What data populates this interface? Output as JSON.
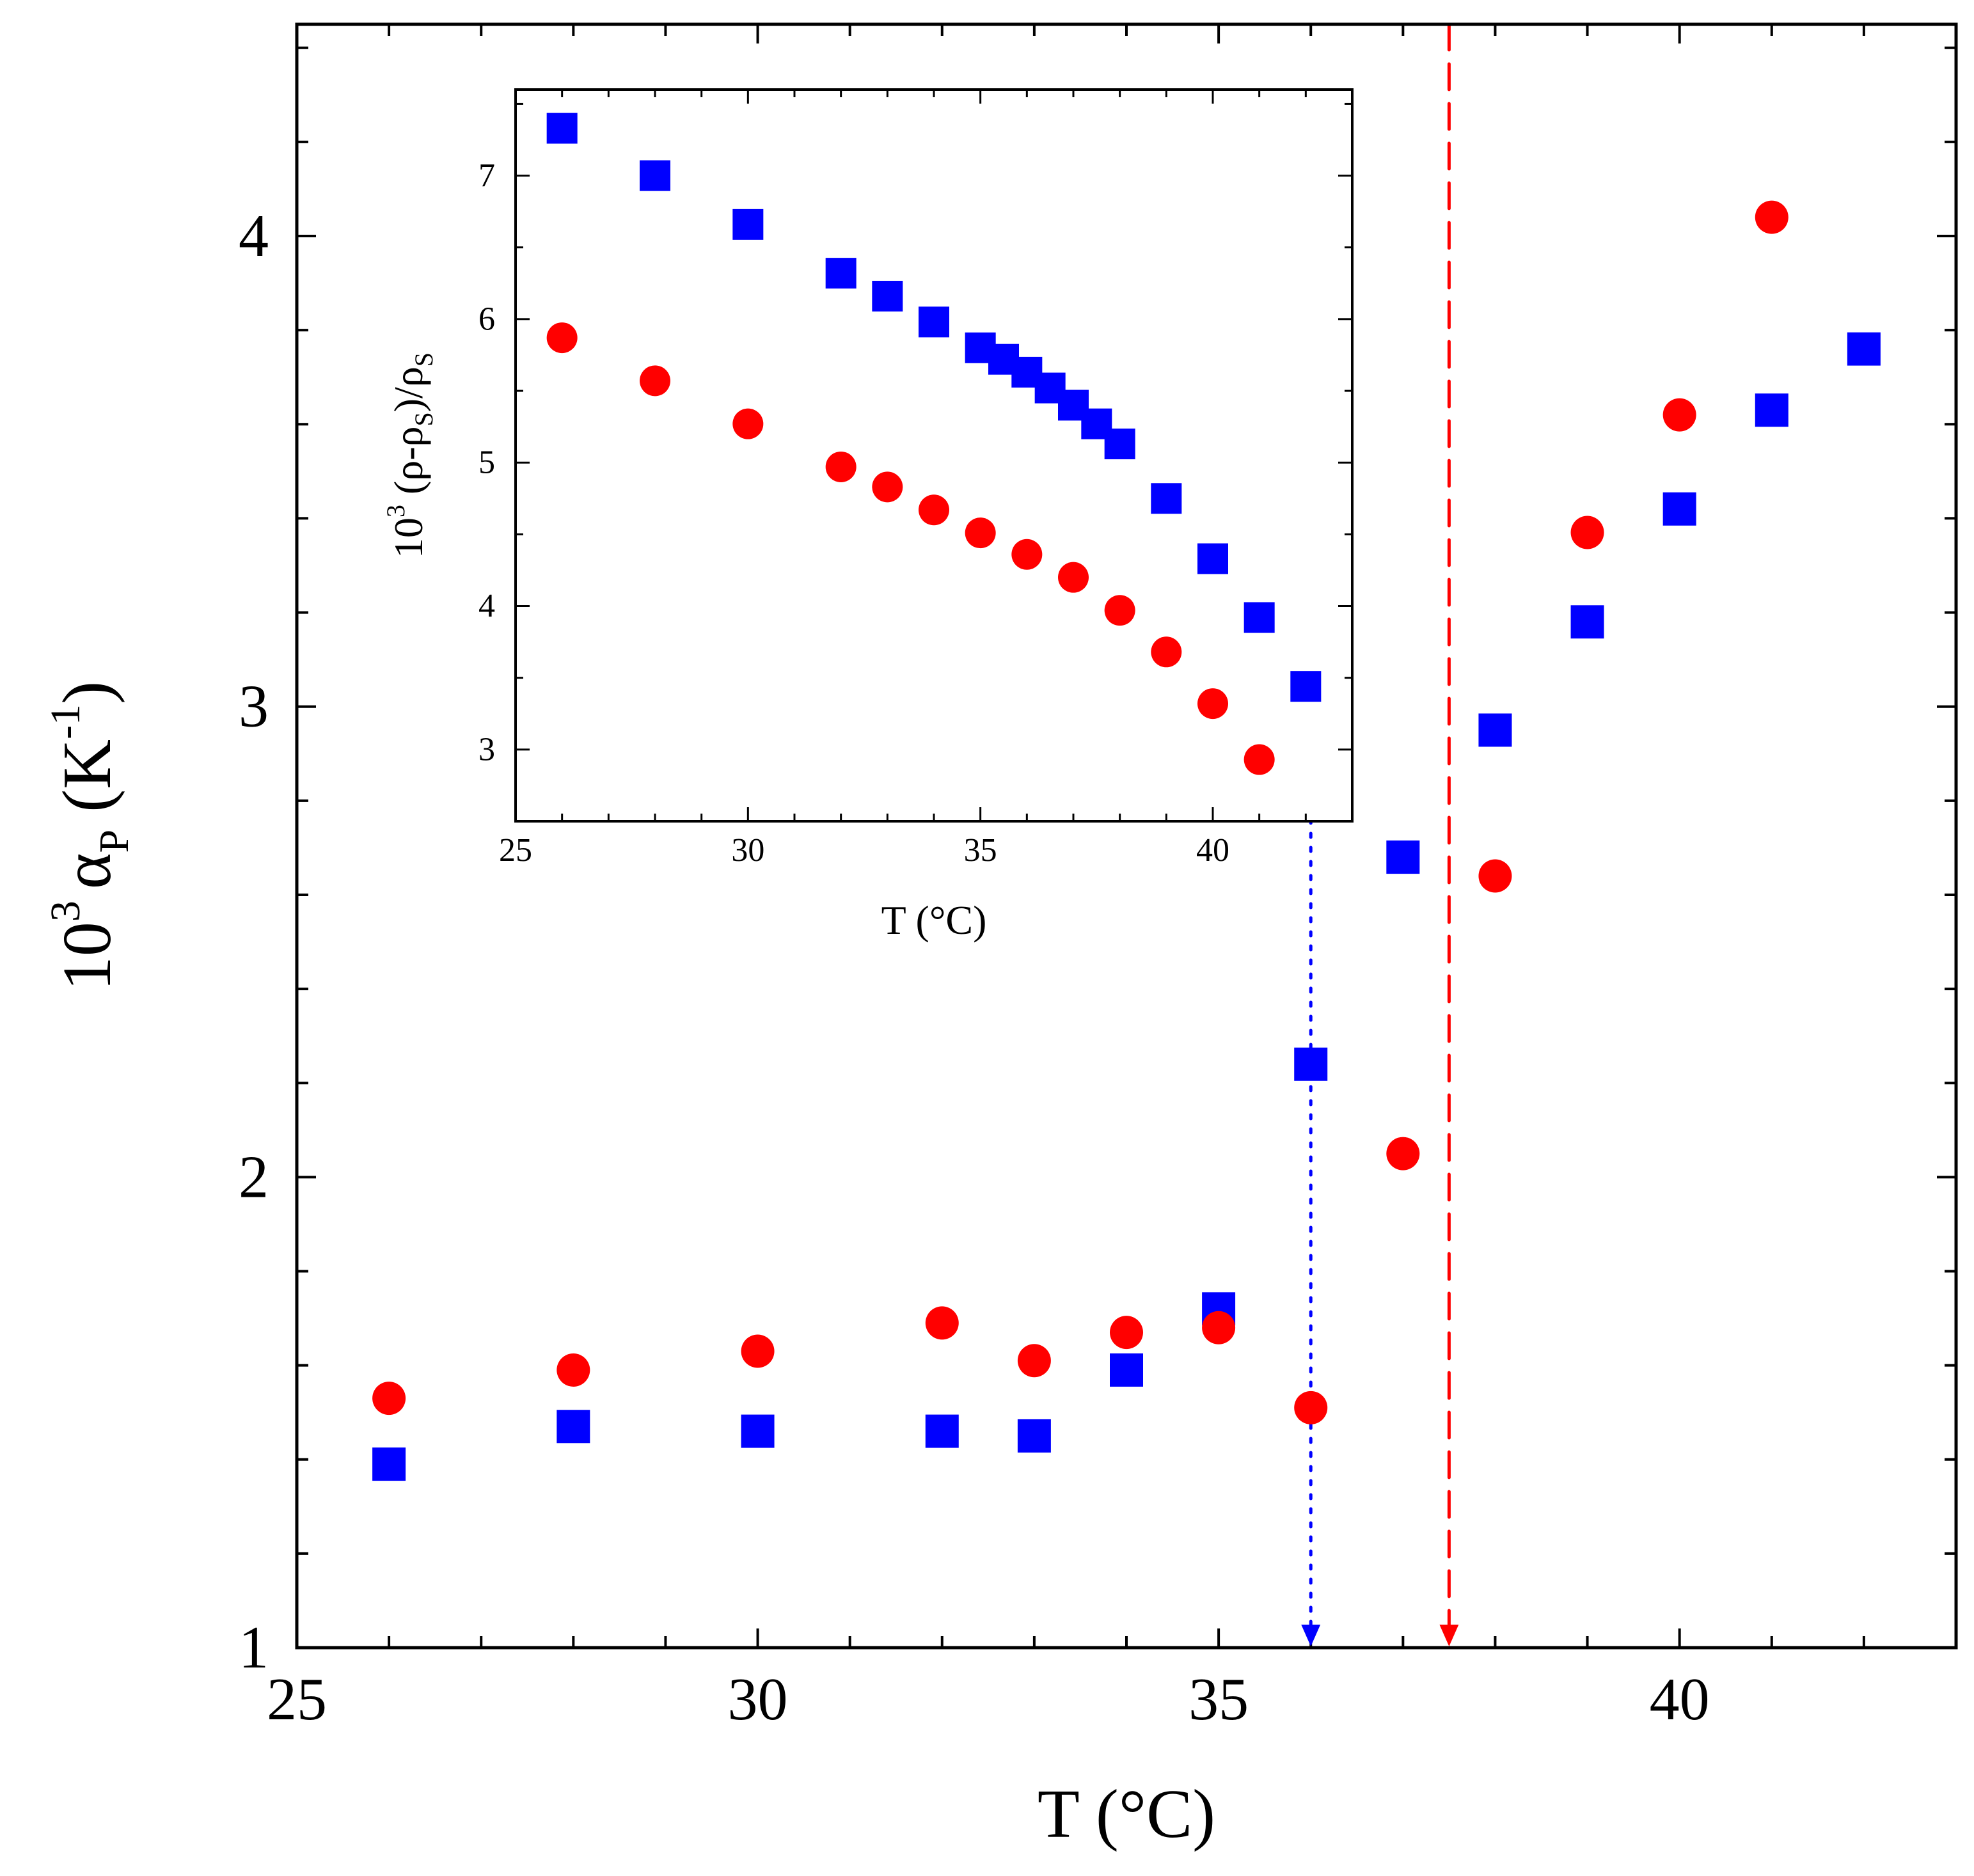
{
  "colors": {
    "series_a": "#0000ff",
    "series_b": "#ff0000",
    "axis": "#000000"
  },
  "chart_data": [
    {
      "id": "main",
      "type": "scatter",
      "xlabel": "T (°C)",
      "ylabel": {
        "base": "10",
        "exp": "3",
        "symbol": "α",
        "sub": "P",
        "unit_open": " (K",
        "unit_exp": "-1",
        "unit_close": ")"
      },
      "xlim": [
        25,
        43
      ],
      "ylim": [
        1,
        4.45
      ],
      "xticks": [
        25,
        30,
        35,
        40
      ],
      "yticks": [
        1,
        2,
        3,
        4
      ],
      "xtick_labels": [
        "25",
        "30",
        "35",
        "40"
      ],
      "ytick_labels": [
        "1",
        "2",
        "3",
        "4"
      ],
      "series": [
        {
          "name": "squares",
          "marker": "square",
          "color": "#0000ff",
          "x": [
            26,
            28,
            30,
            32,
            33,
            34,
            35,
            36,
            37,
            38,
            39,
            40,
            41,
            42
          ],
          "y": [
            1.39,
            1.47,
            1.46,
            1.46,
            1.45,
            1.59,
            1.72,
            2.24,
            2.68,
            2.95,
            3.18,
            3.42,
            3.63,
            3.76
          ]
        },
        {
          "name": "circles",
          "marker": "circle",
          "color": "#ff0000",
          "x": [
            26,
            28,
            30,
            32,
            33,
            34,
            35,
            36,
            37,
            38,
            39,
            40,
            41
          ],
          "y": [
            1.53,
            1.59,
            1.63,
            1.69,
            1.61,
            1.67,
            1.68,
            1.51,
            2.05,
            2.64,
            3.37,
            3.62,
            4.04
          ]
        }
      ],
      "annotations": [
        {
          "type": "vline-arrow",
          "style": "dotted",
          "color": "#0000ff",
          "x": 36.0,
          "y_from": 2.85,
          "y_to": 1.0
        },
        {
          "type": "vline-arrow",
          "style": "dashed",
          "color": "#ff0000",
          "x": 37.5,
          "y_from": 4.45,
          "y_to": 1.0
        }
      ]
    },
    {
      "id": "inset",
      "type": "scatter",
      "xlabel": "T (°C)",
      "ylabel": {
        "base": "10",
        "exp": "3",
        "open": " (ρ-ρ",
        "sub1": "S",
        "mid": ")/ρ",
        "sub2": "S"
      },
      "xlim": [
        25,
        43
      ],
      "ylim": [
        2.5,
        7.6
      ],
      "xticks": [
        25,
        30,
        35,
        40
      ],
      "yticks": [
        3,
        4,
        5,
        6,
        7
      ],
      "xtick_labels": [
        "25",
        "30",
        "35",
        "40"
      ],
      "ytick_labels": [
        "3",
        "4",
        "5",
        "6",
        "7"
      ],
      "series": [
        {
          "name": "squares",
          "marker": "square",
          "color": "#0000ff",
          "x": [
            26,
            28,
            30,
            32,
            33,
            34,
            35,
            35.5,
            36,
            36.5,
            37,
            37.5,
            38,
            39,
            40,
            41,
            42
          ],
          "y": [
            7.33,
            7.0,
            6.66,
            6.32,
            6.16,
            5.98,
            5.8,
            5.72,
            5.63,
            5.52,
            5.4,
            5.27,
            5.13,
            4.75,
            4.33,
            3.92,
            3.44
          ]
        },
        {
          "name": "circles",
          "marker": "circle",
          "color": "#ff0000",
          "x": [
            26,
            28,
            30,
            32,
            33,
            34,
            35,
            36,
            37,
            38,
            39,
            40,
            41
          ],
          "y": [
            5.87,
            5.57,
            5.27,
            4.97,
            4.83,
            4.67,
            4.51,
            4.36,
            4.2,
            3.97,
            3.68,
            3.32,
            2.93
          ]
        }
      ]
    }
  ]
}
